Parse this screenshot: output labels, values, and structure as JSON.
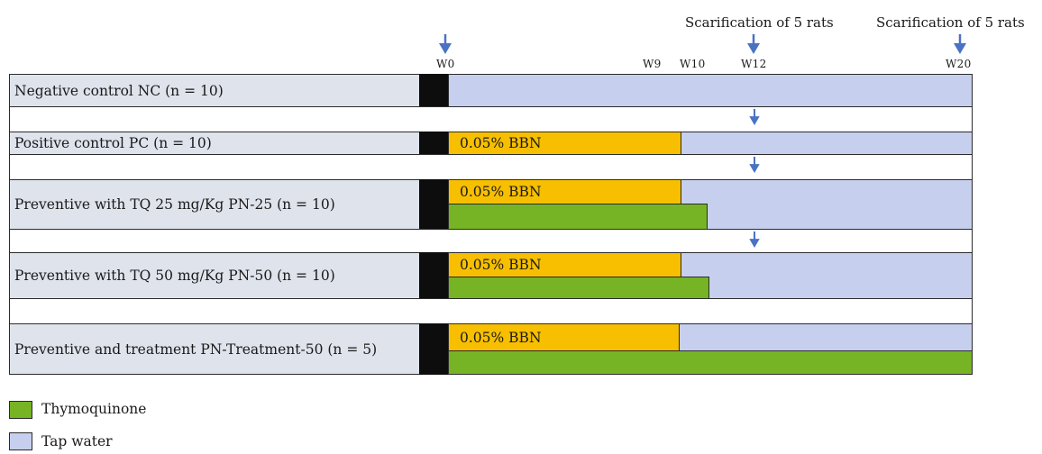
{
  "header": {
    "scar_label_1": "Scarification of 5 rats",
    "scar_label_2": "Scarification of 5 rats"
  },
  "weeks": {
    "w0": "W0",
    "w9": "W9",
    "w10": "W10",
    "w12": "W12",
    "w20": "W20"
  },
  "groups": [
    {
      "label": "Negative control NC (n = 10)"
    },
    {
      "label": "Positive control PC (n = 10)",
      "bbn": "0.05% BBN"
    },
    {
      "label": "Preventive with TQ 25 mg/Kg PN-25 (n = 10)",
      "bbn": "0.05% BBN"
    },
    {
      "label": "Preventive with TQ 50 mg/Kg PN-50 (n = 10)",
      "bbn": "0.05% BBN"
    },
    {
      "label": "Preventive and treatment PN-Treatment-50 (n = 5)",
      "bbn": "0.05% BBN"
    }
  ],
  "legend": [
    {
      "label": "Thymoquinone",
      "color": "#76b425"
    },
    {
      "label": "Tap water",
      "color": "#c6d0ee"
    }
  ],
  "colors": {
    "arrow": "#4a72c4",
    "bbn": "#f7bf00",
    "thymoquinone": "#76b425",
    "tap_water": "#c6d0ee",
    "label_bg": "#dfe3ec"
  }
}
